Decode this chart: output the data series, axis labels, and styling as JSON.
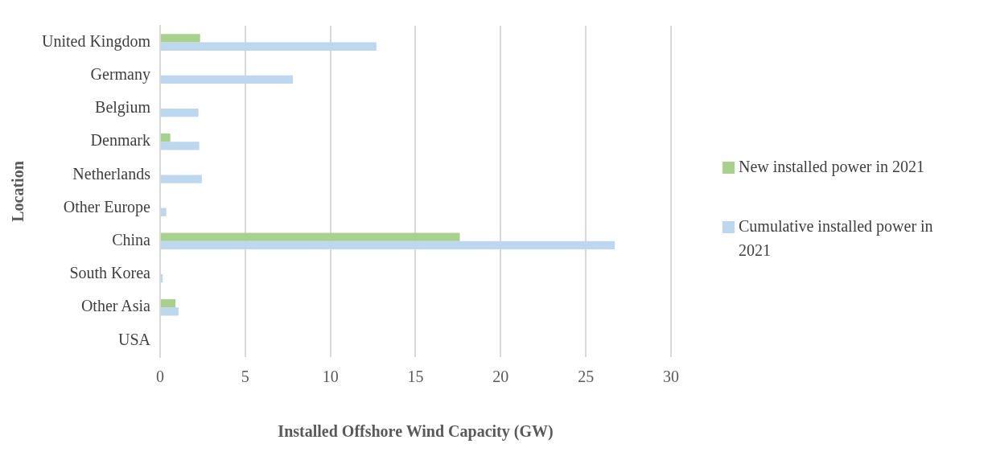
{
  "chart_data": {
    "type": "bar",
    "orientation": "horizontal",
    "xlabel": "Installed Offshore Wind Capacity (GW)",
    "ylabel": "Location",
    "categories": [
      "United Kingdom",
      "Germany",
      "Belgium",
      "Denmark",
      "Netherlands",
      "Other Europe",
      "China",
      "South Korea",
      "Other Asia",
      "USA"
    ],
    "series": [
      {
        "name": "New installed power in 2021",
        "color": "#a9d18e",
        "values": [
          2.35,
          0,
          0,
          0.6,
          0,
          null,
          17.6,
          0,
          0.9,
          null
        ]
      },
      {
        "name": "Cumulative installed power in 2021",
        "color": "#bdd7ee",
        "values": [
          12.7,
          7.8,
          2.25,
          2.3,
          2.45,
          0.37,
          26.7,
          0.15,
          1.08,
          0.04
        ]
      }
    ],
    "xlim": [
      0,
      30
    ],
    "xticks": [
      0,
      5,
      10,
      15,
      20,
      25,
      30
    ],
    "grid": "x",
    "legend": "right"
  }
}
